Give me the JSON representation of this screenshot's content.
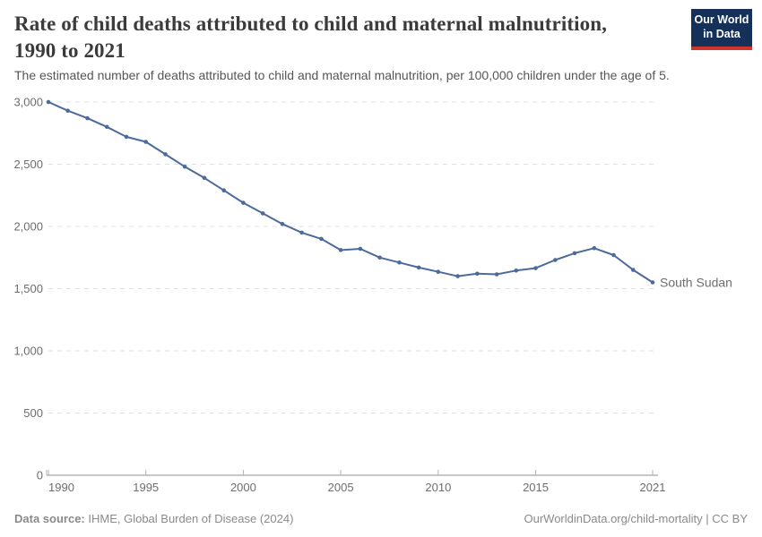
{
  "header": {
    "title_line1": "Rate of child deaths attributed to child and maternal malnutrition,",
    "title_line2": "1990 to 2021",
    "subtitle": "The estimated number of deaths attributed to child and maternal malnutrition, per 100,000 children under the age of 5.",
    "logo": {
      "line1": "Our World",
      "line2": "in Data",
      "bg_color": "#15315a",
      "bar_color": "#d0342c"
    }
  },
  "footer": {
    "data_source_label": "Data source:",
    "data_source_value": " IHME, Global Burden of Disease (2024)",
    "license": "OurWorldinData.org/child-mortality | CC BY"
  },
  "chart_data": {
    "type": "line",
    "title": "Rate of child deaths attributed to child and maternal malnutrition, 1990 to 2021",
    "xlabel": "",
    "ylabel": "",
    "xlim": [
      1990,
      2021
    ],
    "ylim": [
      0,
      3000
    ],
    "grid": "horizontal-dashed",
    "legend_position": "line-end-label",
    "x": [
      1990,
      1991,
      1992,
      1993,
      1994,
      1995,
      1996,
      1997,
      1998,
      1999,
      2000,
      2001,
      2002,
      2003,
      2004,
      2005,
      2006,
      2007,
      2008,
      2009,
      2010,
      2011,
      2012,
      2013,
      2014,
      2015,
      2016,
      2017,
      2018,
      2019,
      2020,
      2021
    ],
    "series": [
      {
        "name": "South Sudan",
        "color": "#4c6a9c",
        "values": [
          3000,
          2930,
          2870,
          2800,
          2720,
          2680,
          2580,
          2480,
          2390,
          2290,
          2190,
          2105,
          2020,
          1950,
          1900,
          1810,
          1820,
          1750,
          1710,
          1670,
          1635,
          1600,
          1620,
          1615,
          1645,
          1665,
          1730,
          1785,
          1825,
          1770,
          1650,
          1550
        ]
      }
    ],
    "yticks": [
      0,
      500,
      1000,
      1500,
      2000,
      2500,
      3000
    ],
    "ytick_labels": [
      "0",
      "500",
      "1,000",
      "1,500",
      "2,000",
      "2,500",
      "3,000"
    ],
    "xticks": [
      1990,
      1995,
      2000,
      2005,
      2010,
      2015,
      2021
    ],
    "axis_color": "#8f8f8f",
    "gridline_color": "#e0e0e0",
    "tick_color": "#b3b3b3"
  }
}
